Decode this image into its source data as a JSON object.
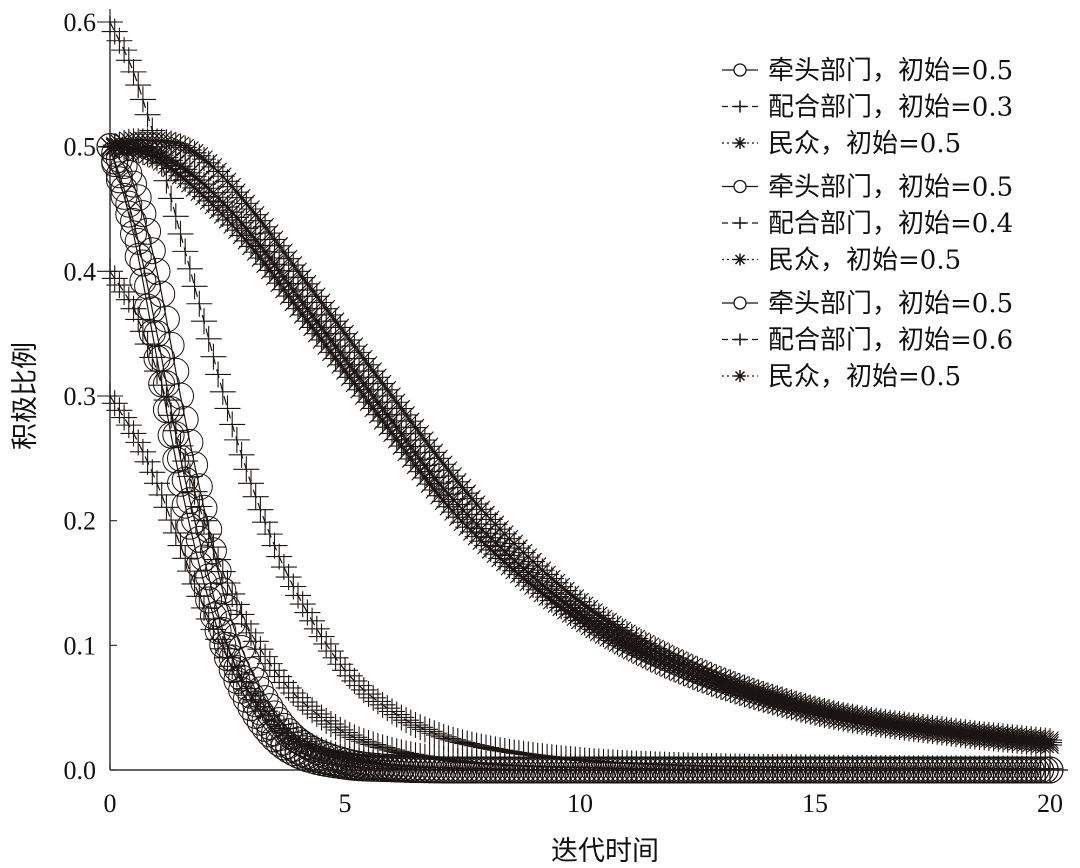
{
  "chart_data": {
    "type": "line",
    "xlabel": "迭代时间",
    "ylabel": "积极比例",
    "xlim": [
      0,
      20
    ],
    "ylim": [
      0,
      0.6
    ],
    "x_ticks": [
      "0",
      "5",
      "10",
      "15",
      "20"
    ],
    "y_ticks": [
      "0.0",
      "0.1",
      "0.2",
      "0.3",
      "0.4",
      "0.5",
      "0.6"
    ],
    "grid": false,
    "legend_position": "top-right",
    "colors": {
      "ink": "#1a1412",
      "axis": "#333333"
    },
    "series": [
      {
        "name": "牵头部门，初始=0.5",
        "marker": "circle",
        "line": "solid",
        "group": 1,
        "x": [
          0,
          0.5,
          1,
          1.5,
          2,
          2.5,
          3,
          3.5,
          4,
          5,
          6,
          8,
          10,
          15,
          20
        ],
        "y": [
          0.5,
          0.43,
          0.33,
          0.23,
          0.15,
          0.09,
          0.05,
          0.025,
          0.012,
          0.003,
          0.001,
          0,
          0,
          0,
          0
        ]
      },
      {
        "name": "配合部门，初始=0.3",
        "marker": "plus",
        "line": "dash",
        "group": 1,
        "x": [
          0,
          0.5,
          1,
          1.5,
          2,
          2.5,
          3,
          3.5,
          4,
          5,
          6,
          8,
          10,
          15,
          20
        ],
        "y": [
          0.3,
          0.27,
          0.23,
          0.18,
          0.13,
          0.09,
          0.06,
          0.04,
          0.025,
          0.01,
          0.004,
          0.001,
          0,
          0,
          0
        ]
      },
      {
        "name": "民众，初始=0.5",
        "marker": "star",
        "line": "dotted",
        "group": 1,
        "x": [
          0,
          0.5,
          1,
          2,
          3,
          4,
          5,
          6,
          7,
          8,
          10,
          12,
          15,
          18,
          20
        ],
        "y": [
          0.5,
          0.497,
          0.49,
          0.46,
          0.42,
          0.37,
          0.32,
          0.27,
          0.22,
          0.18,
          0.12,
          0.08,
          0.045,
          0.028,
          0.02
        ]
      },
      {
        "name": "牵头部门，初始=0.5",
        "marker": "circle",
        "line": "solid",
        "group": 2,
        "x": [
          0,
          0.5,
          1,
          1.5,
          2,
          2.5,
          3,
          3.5,
          4,
          5,
          6,
          8,
          10,
          15,
          20
        ],
        "y": [
          0.5,
          0.44,
          0.35,
          0.25,
          0.17,
          0.1,
          0.06,
          0.03,
          0.015,
          0.004,
          0.001,
          0,
          0,
          0,
          0
        ]
      },
      {
        "name": "配合部门，初始=0.4",
        "marker": "plus",
        "line": "dash",
        "group": 2,
        "x": [
          0,
          0.5,
          1,
          1.5,
          2,
          2.5,
          3,
          3.5,
          4,
          5,
          6,
          7,
          8,
          10,
          15,
          20
        ],
        "y": [
          0.4,
          0.37,
          0.32,
          0.26,
          0.2,
          0.15,
          0.11,
          0.08,
          0.058,
          0.03,
          0.016,
          0.009,
          0.005,
          0.002,
          0,
          0
        ]
      },
      {
        "name": "民众，初始=0.5",
        "marker": "star",
        "line": "dotted",
        "group": 2,
        "x": [
          0,
          0.5,
          1,
          2,
          3,
          4,
          5,
          6,
          7,
          8,
          10,
          12,
          15,
          18,
          20
        ],
        "y": [
          0.5,
          0.5,
          0.495,
          0.47,
          0.43,
          0.38,
          0.33,
          0.28,
          0.23,
          0.19,
          0.125,
          0.085,
          0.048,
          0.03,
          0.022
        ]
      },
      {
        "name": "牵头部门，初始=0.5",
        "marker": "circle",
        "line": "solid",
        "group": 3,
        "x": [
          0,
          0.5,
          1,
          1.5,
          2,
          2.5,
          3,
          3.5,
          4,
          5,
          6,
          8,
          10,
          15,
          20
        ],
        "y": [
          0.5,
          0.47,
          0.4,
          0.3,
          0.21,
          0.13,
          0.08,
          0.045,
          0.024,
          0.007,
          0.002,
          0,
          0,
          0,
          0
        ]
      },
      {
        "name": "配合部门，初始=0.6",
        "marker": "plus",
        "line": "dash",
        "group": 3,
        "x": [
          0,
          0.5,
          1,
          1.5,
          2,
          2.5,
          3,
          3.5,
          4,
          5,
          6,
          7,
          8,
          10,
          12,
          15,
          20
        ],
        "y": [
          0.6,
          0.56,
          0.5,
          0.43,
          0.36,
          0.29,
          0.23,
          0.18,
          0.14,
          0.08,
          0.047,
          0.028,
          0.018,
          0.008,
          0.004,
          0.002,
          0.001
        ]
      },
      {
        "name": "民众，初始=0.5",
        "marker": "star",
        "line": "dotted",
        "group": 3,
        "x": [
          0,
          0.5,
          1,
          2,
          3,
          4,
          5,
          6,
          7,
          8,
          10,
          12,
          15,
          18,
          20
        ],
        "y": [
          0.5,
          0.505,
          0.505,
          0.49,
          0.45,
          0.4,
          0.35,
          0.3,
          0.25,
          0.205,
          0.135,
          0.09,
          0.05,
          0.032,
          0.024
        ]
      }
    ]
  }
}
